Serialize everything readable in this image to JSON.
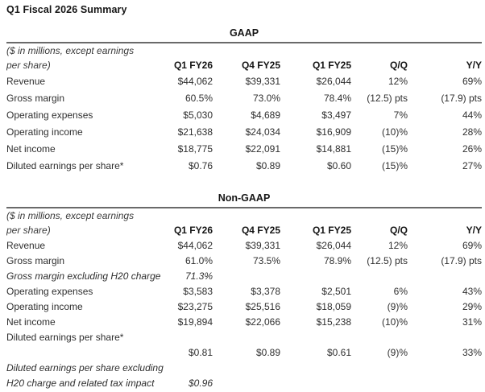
{
  "page_title": "Q1 Fiscal 2026 Summary",
  "colors": {
    "background": "#ffffff",
    "text": "#2f2f2f",
    "heading": "#151515",
    "rule": "#6a6a6a"
  },
  "gaap": {
    "section_title": "GAAP",
    "caption_line1": "($ in millions, except earnings",
    "caption_line2": "per share)",
    "column_headers": [
      "Q1 FY26",
      "Q4 FY25",
      "Q1 FY25",
      "Q/Q",
      "Y/Y"
    ],
    "rows": [
      {
        "label": "Revenue",
        "cells": [
          "$44,062",
          "$39,331",
          "$26,044",
          "12%",
          "69%"
        ]
      },
      {
        "label": "Gross margin",
        "cells": [
          "60.5%",
          "73.0%",
          "78.4%",
          "(12.5) pts",
          "(17.9) pts"
        ]
      },
      {
        "label": "Operating expenses",
        "cells": [
          "$5,030",
          "$4,689",
          "$3,497",
          "7%",
          "44%"
        ]
      },
      {
        "label": "Operating income",
        "cells": [
          "$21,638",
          "$24,034",
          "$16,909",
          "(10)%",
          "28%"
        ]
      },
      {
        "label": "Net income",
        "cells": [
          "$18,775",
          "$22,091",
          "$14,881",
          "(15)%",
          "26%"
        ]
      },
      {
        "label": "Diluted earnings per share*",
        "cells": [
          "$0.76",
          "$0.89",
          "$0.60",
          "(15)%",
          "27%"
        ]
      }
    ]
  },
  "non_gaap": {
    "section_title": "Non-GAAP",
    "caption_line1": "($ in millions, except earnings",
    "caption_line2": "per share)",
    "column_headers": [
      "Q1 FY26",
      "Q4 FY25",
      "Q1 FY25",
      "Q/Q",
      "Y/Y"
    ],
    "rows": [
      {
        "label": "Revenue",
        "cells": [
          "$44,062",
          "$39,331",
          "$26,044",
          "12%",
          "69%"
        ]
      },
      {
        "label": "Gross margin",
        "cells": [
          "61.0%",
          "73.5%",
          "78.9%",
          "(12.5) pts",
          "(17.9) pts"
        ]
      },
      {
        "label": "Gross margin excluding H20 charge",
        "cells": [
          "71.3%",
          "",
          "",
          "",
          ""
        ]
      },
      {
        "label": "Operating expenses",
        "cells": [
          "$3,583",
          "$3,378",
          "$2,501",
          "6%",
          "43%"
        ]
      },
      {
        "label": "Operating income",
        "cells": [
          "$23,275",
          "$25,516",
          "$18,059",
          "(9)%",
          "29%"
        ]
      },
      {
        "label": "Net income",
        "cells": [
          "$19,894",
          "$22,066",
          "$15,238",
          "(10)%",
          "31%"
        ]
      },
      {
        "label": "Diluted earnings per share*",
        "cells": [
          "",
          "",
          "",
          "",
          ""
        ]
      },
      {
        "label": "",
        "cells": [
          "$0.81",
          "$0.89",
          "$0.61",
          "(9)%",
          "33%"
        ]
      },
      {
        "label": "Diluted earnings per share excluding",
        "cells": [
          "",
          "",
          "",
          "",
          ""
        ]
      },
      {
        "label": "H20 charge and related tax impact",
        "cells": [
          "$0.96",
          "",
          "",
          "",
          ""
        ]
      }
    ]
  }
}
